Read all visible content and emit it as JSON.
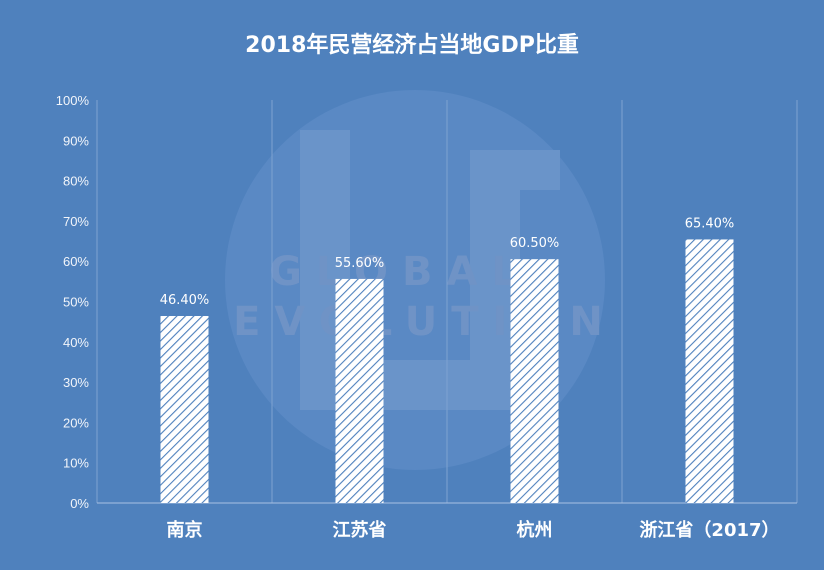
{
  "chart_data": {
    "type": "bar",
    "title": "2018年民营经济占当地GDP比重",
    "categories": [
      "南京",
      "江苏省",
      "杭州",
      "浙江省（2017）"
    ],
    "values": [
      46.4,
      55.6,
      60.5,
      65.4
    ],
    "value_labels": [
      "46.40%",
      "55.60%",
      "60.50%",
      "65.40%"
    ],
    "ylim": [
      0,
      100
    ],
    "yticks": [
      "0%",
      "10%",
      "20%",
      "30%",
      "40%",
      "50%",
      "60%",
      "70%",
      "80%",
      "90%",
      "100%"
    ],
    "grid": "vertical",
    "legend": "none",
    "colors": {
      "background": "#4f81bd",
      "bar_fill": "#ffffff",
      "bar_hatch": "#4f81bd",
      "gridline": "#7fa2d1",
      "axis": "#a9c1e2"
    }
  },
  "watermark": {
    "line1": "GLOBAL",
    "line2": "EVOLUTION"
  }
}
